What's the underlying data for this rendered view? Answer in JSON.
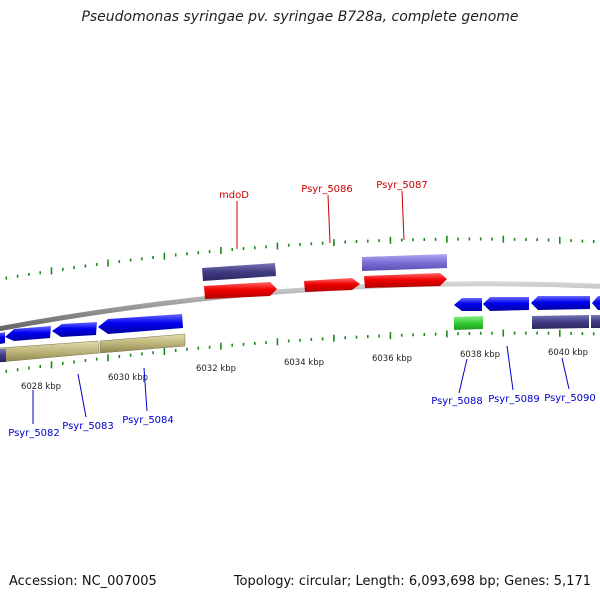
{
  "title": "Pseudomonas syringae pv. syringae B728a, complete genome",
  "accession": {
    "label": "Accession:",
    "value": "NC_007005"
  },
  "summary": {
    "topology_label": "Topology:",
    "topology": "circular",
    "length_label": "Length:",
    "length": "6,093,698 bp",
    "genes_label": "Genes:",
    "genes": "5,171"
  },
  "scale_ticks": [
    "6028 kbp",
    "6030 kbp",
    "6032 kbp",
    "6034 kbp",
    "6036 kbp",
    "6038 kbp",
    "6040 kbp"
  ],
  "genes_above": [
    "mdoD",
    "Psyr_5086",
    "Psyr_5087"
  ],
  "genes_below": [
    "Psyr_5082",
    "Psyr_5083",
    "Psyr_5084",
    "Psyr_5088",
    "Psyr_5089",
    "Psyr_5090"
  ],
  "colors": {
    "backbone": "#9a9a9a",
    "forward_cds": "#ee0000",
    "reverse_cds": "#0000ee",
    "feature_dark": "#3f3b82",
    "feature_light": "#7b6fd6",
    "feature_green": "#33cc33",
    "feature_khaki": "#bdb57a",
    "tick_green": "#1a8a1a",
    "label_red": "#cc0000",
    "label_blue": "#0000cc"
  }
}
